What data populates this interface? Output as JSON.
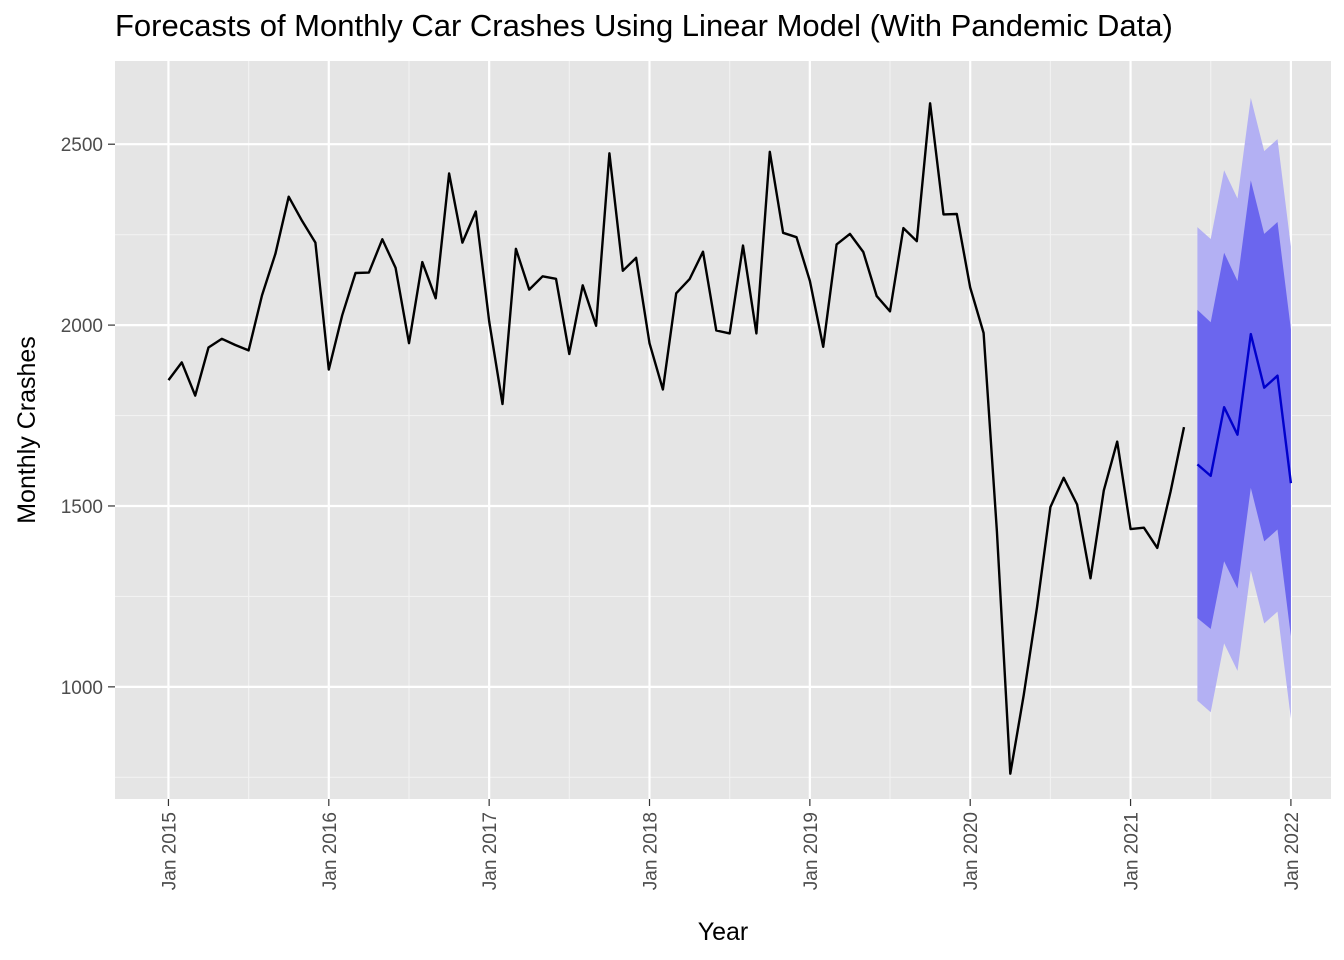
{
  "chart_data": {
    "type": "line",
    "title": "Forecasts of Monthly Car Crashes Using Linear Model (With Pandemic Data)",
    "xlabel": "Year",
    "ylabel": "Monthly Crashes",
    "x_ticks": [
      "Jan 2015",
      "Jan 2016",
      "Jan 2017",
      "Jan 2018",
      "Jan 2019",
      "Jan 2020",
      "Jan 2021",
      "Jan 2022"
    ],
    "y_ticks": [
      1000,
      1500,
      2000,
      2500
    ],
    "ylim": [
      690,
      2730
    ],
    "xlim": [
      "2014-09",
      "2022-04"
    ],
    "grid": true,
    "background": "#e5e5e5",
    "colors": {
      "history": "#000000",
      "forecast": "#0000cc",
      "band80": "#6b66ee",
      "band95": "#b3b0f3"
    },
    "history": {
      "start": "2015-01",
      "values": [
        1848,
        1897,
        1805,
        1938,
        1962,
        1945,
        1930,
        2082,
        2197,
        2355,
        2288,
        2228,
        1877,
        2027,
        2144,
        2145,
        2237,
        2158,
        1950,
        2174,
        2074,
        2419,
        2228,
        2314,
        2010,
        1782,
        2211,
        2098,
        2135,
        2128,
        1920,
        2110,
        1998,
        2475,
        2150,
        2186,
        1950,
        1822,
        2088,
        2127,
        2203,
        1985,
        1977,
        2220,
        1977,
        2479,
        2255,
        2243,
        2122,
        1940,
        2223,
        2252,
        2202,
        2080,
        2038,
        2268,
        2232,
        2613,
        2306,
        2307,
        2104,
        1978,
        1430,
        760,
        977,
        1220,
        1497,
        1578,
        1504,
        1300,
        1543,
        1678,
        1436,
        1440,
        1384,
        1540,
        1718
      ]
    },
    "forecast": {
      "start": "2021-06",
      "mean": [
        1615,
        1583,
        1773,
        1697,
        1975,
        1827,
        1860,
        1563
      ],
      "lo80": [
        1190,
        1160,
        1347,
        1272,
        1550,
        1402,
        1435,
        1140
      ],
      "hi80": [
        2042,
        2008,
        2200,
        2122,
        2400,
        2252,
        2285,
        1988
      ],
      "lo95": [
        962,
        930,
        1120,
        1044,
        1322,
        1175,
        1208,
        912
      ],
      "hi95": [
        2271,
        2238,
        2428,
        2350,
        2628,
        2481,
        2514,
        2217
      ]
    }
  }
}
